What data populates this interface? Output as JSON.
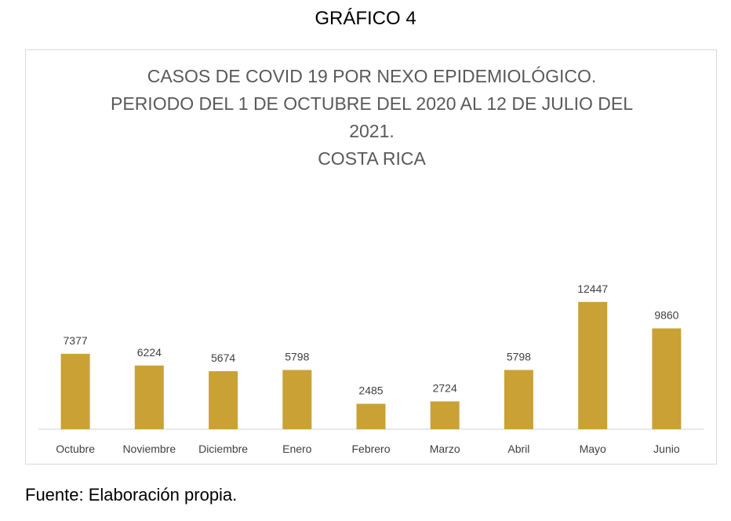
{
  "figure_caption": "GRÁFICO 4",
  "source_note": "Fuente: Elaboración propia.",
  "colors": {
    "bar": "#c9a135",
    "title": "#595959",
    "axis": "#d9d9d9",
    "label": "#404040"
  },
  "chart_data": {
    "type": "bar",
    "title_lines": [
      "CASOS DE COVID 19 POR NEXO EPIDEMIOLÓGICO.",
      "PERIODO DEL 1 DE OCTUBRE DEL 2020 AL 12 DE JULIO DEL",
      "2021.",
      "COSTA RICA"
    ],
    "categories": [
      "Octubre",
      "Noviembre",
      "Diciembre",
      "Enero",
      "Febrero",
      "Marzo",
      "Abril",
      "Mayo",
      "Junio"
    ],
    "values": [
      7377,
      6224,
      5674,
      5798,
      2485,
      2724,
      5798,
      12447,
      9860
    ],
    "data_labels": true,
    "ylim": [
      0,
      14000
    ],
    "grid": false,
    "legend": "none"
  }
}
